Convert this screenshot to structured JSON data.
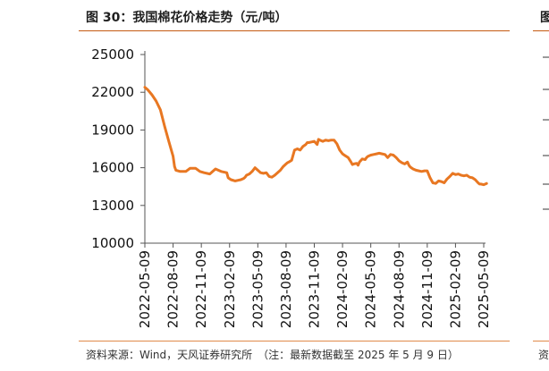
{
  "figure": {
    "title": "图 30：我国棉花价格走势（元/吨）",
    "source": "资料来源：Wind，天风证券研究所　（注：最新数据截至 2025 年 5 月 9 日）",
    "neighbor_title_fragment": "图",
    "neighbor_source_fragment": "资"
  },
  "colors": {
    "line": "#e87722",
    "rule": "#c55a11",
    "axis": "#555555"
  },
  "chart_data": {
    "type": "line",
    "title": "我国棉花价格走势（元/吨）",
    "xlabel": "",
    "ylabel": "元/吨",
    "ylim": [
      10000,
      25000
    ],
    "yticks": [
      10000,
      13000,
      16000,
      19000,
      22000,
      25000
    ],
    "x_tick_labels": [
      "2022-05-09",
      "2022-08-09",
      "2022-11-09",
      "2023-02-09",
      "2023-05-09",
      "2023-08-09",
      "2023-11-09",
      "2024-02-09",
      "2024-05-09",
      "2024-08-09",
      "2024-11-09",
      "2025-02-09",
      "2025-05-09"
    ],
    "grid": false,
    "legend": "none",
    "series": [
      {
        "name": "棉花价格",
        "x": [
          0,
          0.1,
          0.25,
          0.4,
          0.55,
          0.7,
          0.85,
          1.0,
          1.05,
          1.1,
          1.25,
          1.45,
          1.6,
          1.8,
          1.95,
          2.1,
          2.3,
          2.5,
          2.7,
          2.9,
          2.95,
          3.05,
          3.2,
          3.3,
          3.4,
          3.5,
          3.55,
          3.6,
          3.7,
          3.8,
          3.9,
          4.0,
          4.1,
          4.2,
          4.3,
          4.4,
          4.5,
          4.6,
          4.7,
          4.8,
          4.9,
          5.0,
          5.05,
          5.1,
          5.2,
          5.3,
          5.4,
          5.5,
          5.6,
          5.7,
          5.75,
          5.8,
          5.9,
          6.0,
          6.1,
          6.15,
          6.2,
          6.3,
          6.4,
          6.5,
          6.6,
          6.7,
          6.8,
          6.9,
          7.0,
          7.1,
          7.2,
          7.3,
          7.35,
          7.4,
          7.5,
          7.55,
          7.6,
          7.7,
          7.8,
          7.85,
          7.9,
          8.0,
          8.1,
          8.2,
          8.3,
          8.4,
          8.5,
          8.6,
          8.7,
          8.8,
          8.9,
          9.0,
          9.1,
          9.2,
          9.3,
          9.35,
          9.4,
          9.5,
          9.6,
          9.7,
          9.8,
          9.9,
          10.0,
          10.1,
          10.2,
          10.3,
          10.4,
          10.5,
          10.6,
          10.7,
          10.8,
          10.9,
          11.0,
          11.1,
          11.2,
          11.3,
          11.4,
          11.5,
          11.6,
          11.7,
          11.8,
          11.85,
          11.9,
          12.0,
          12.1
        ],
        "values": [
          22400,
          22200,
          21800,
          21300,
          20600,
          19300,
          18100,
          16900,
          16100,
          15800,
          15700,
          15700,
          15950,
          15950,
          15700,
          15600,
          15500,
          15900,
          15700,
          15600,
          15200,
          15050,
          14950,
          15000,
          15050,
          15150,
          15250,
          15400,
          15500,
          15700,
          16000,
          15800,
          15600,
          15550,
          15600,
          15300,
          15250,
          15400,
          15600,
          15800,
          16100,
          16300,
          16400,
          16450,
          16600,
          17400,
          17500,
          17400,
          17700,
          17850,
          18000,
          18000,
          18050,
          18100,
          17850,
          18250,
          18200,
          18100,
          18200,
          18150,
          18200,
          18200,
          17900,
          17400,
          17100,
          16950,
          16800,
          16450,
          16250,
          16300,
          16350,
          16200,
          16450,
          16700,
          16650,
          16800,
          16900,
          17000,
          17050,
          17100,
          17150,
          17100,
          17050,
          16800,
          17050,
          17000,
          16800,
          16550,
          16400,
          16300,
          16450,
          16200,
          16050,
          15900,
          15800,
          15750,
          15700,
          15750,
          15750,
          15200,
          14800,
          14750,
          14950,
          14900,
          14800,
          15100,
          15300,
          15550,
          15450,
          15500,
          15400,
          15350,
          15400,
          15250,
          15200,
          15050,
          14800,
          14700,
          14700,
          14650,
          14750
        ]
      }
    ]
  }
}
